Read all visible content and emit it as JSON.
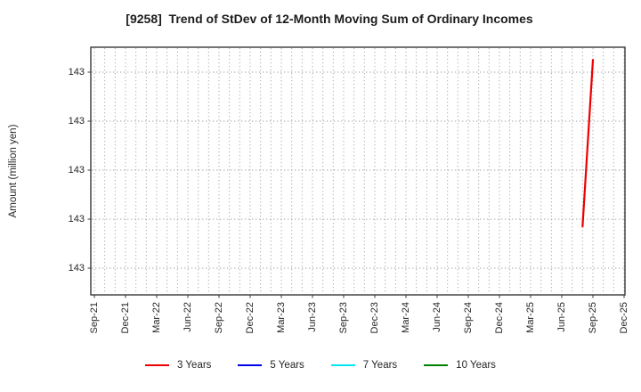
{
  "chart_data": {
    "type": "line",
    "title": "[9258]  Trend of StDev of 12-Month Moving Sum of Ordinary Incomes",
    "xlabel": "",
    "ylabel": "Amount (million yen)",
    "x_tick_labels": [
      "Sep-21",
      "Dec-21",
      "Mar-22",
      "Jun-22",
      "Sep-22",
      "Dec-22",
      "Mar-23",
      "Jun-23",
      "Sep-23",
      "Dec-23",
      "Mar-24",
      "Jun-24",
      "Sep-24",
      "Dec-24",
      "Mar-25",
      "Jun-25",
      "Sep-25",
      "Dec-25"
    ],
    "x_minor_grid": "monthly",
    "grid": true,
    "ylim": [
      142.7455,
      143.2509
    ],
    "y_ticks": [
      {
        "value": 142.8,
        "label": "143"
      },
      {
        "value": 142.9,
        "label": "143"
      },
      {
        "value": 143.0,
        "label": "143"
      },
      {
        "value": 143.1,
        "label": "143"
      },
      {
        "value": 143.2,
        "label": "143"
      }
    ],
    "series": [
      {
        "name": "3 Years",
        "color": "#ee0000",
        "points": [
          {
            "x": "Aug-25",
            "y": 142.885
          },
          {
            "x": "Sep-25",
            "y": 143.225
          }
        ]
      },
      {
        "name": "5 Years",
        "color": "#0000ee",
        "points": []
      },
      {
        "name": "7 Years",
        "color": "#00e5ee",
        "points": []
      },
      {
        "name": "10 Years",
        "color": "#008000",
        "points": []
      }
    ],
    "legend": {
      "position": "bottom",
      "entries": [
        {
          "label": "3 Years",
          "color": "#ee0000"
        },
        {
          "label": "5 Years",
          "color": "#0000ee"
        },
        {
          "label": "7 Years",
          "color": "#00e5ee"
        },
        {
          "label": "10 Years",
          "color": "#008000"
        }
      ]
    }
  }
}
